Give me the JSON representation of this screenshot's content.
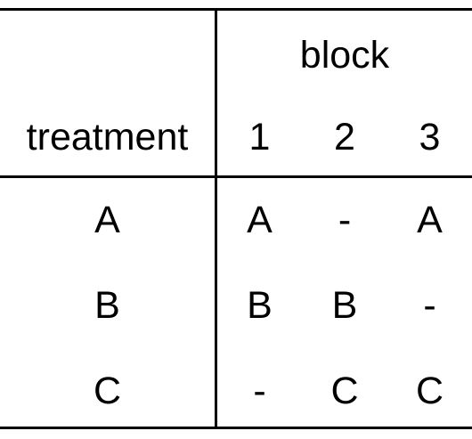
{
  "table": {
    "column_group_header": "block",
    "row_header": "treatment",
    "columns": [
      "1",
      "2",
      "3"
    ],
    "rows": [
      {
        "treatment": "A",
        "cells": [
          "A",
          "-",
          "A"
        ]
      },
      {
        "treatment": "B",
        "cells": [
          "B",
          "B",
          "-"
        ]
      },
      {
        "treatment": "C",
        "cells": [
          "-",
          "C",
          "C"
        ]
      }
    ]
  }
}
